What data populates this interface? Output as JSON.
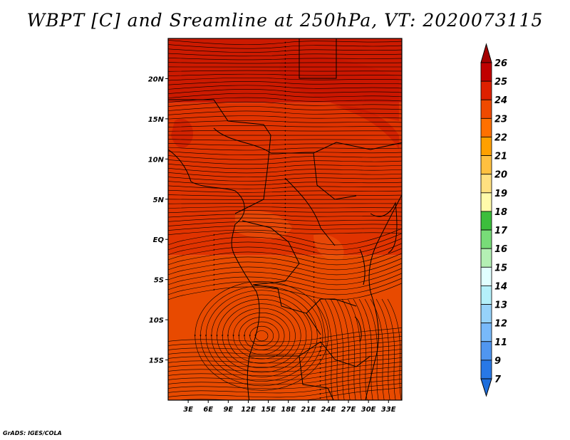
{
  "title": "WBPT [C] and Sreamline at 250hPa, VT: 2020073115",
  "credit": "GrADS: IGES/COLA",
  "map": {
    "lon_range": [
      0,
      35
    ],
    "lat_range": [
      -20,
      25
    ],
    "lat_ticks": [
      {
        "value": 20,
        "label": "20N"
      },
      {
        "value": 15,
        "label": "15N"
      },
      {
        "value": 10,
        "label": "10N"
      },
      {
        "value": 5,
        "label": "5N"
      },
      {
        "value": 0,
        "label": "EQ"
      },
      {
        "value": -5,
        "label": "5S"
      },
      {
        "value": -10,
        "label": "10S"
      },
      {
        "value": -15,
        "label": "15S"
      }
    ],
    "lon_ticks": [
      {
        "value": 3,
        "label": "3E"
      },
      {
        "value": 6,
        "label": "6E"
      },
      {
        "value": 9,
        "label": "9E"
      },
      {
        "value": 12,
        "label": "12E"
      },
      {
        "value": 15,
        "label": "15E"
      },
      {
        "value": 18,
        "label": "18E"
      },
      {
        "value": 21,
        "label": "21E"
      },
      {
        "value": 24,
        "label": "24E"
      },
      {
        "value": 27,
        "label": "27E"
      },
      {
        "value": 30,
        "label": "30E"
      },
      {
        "value": 33,
        "label": "33E"
      }
    ],
    "field_bands": [
      {
        "color": "#cc1a00",
        "lat_from": 25,
        "lat_to": 17
      },
      {
        "color": "#e03300",
        "lat_from": 17,
        "lat_to": -2
      },
      {
        "color": "#e84a00",
        "lat_from": -2,
        "lat_to": -20
      }
    ]
  },
  "colorbar": {
    "levels": [
      {
        "label": "26",
        "color": "#a50000"
      },
      {
        "label": "25",
        "color": "#c00000"
      },
      {
        "label": "24",
        "color": "#de2000"
      },
      {
        "label": "23",
        "color": "#ef4a00"
      },
      {
        "label": "22",
        "color": "#ff7000"
      },
      {
        "label": "21",
        "color": "#ffa000"
      },
      {
        "label": "20",
        "color": "#ffc040"
      },
      {
        "label": "19",
        "color": "#ffe080"
      },
      {
        "label": "18",
        "color": "#fffaaa"
      },
      {
        "label": "17",
        "color": "#3cbe3c"
      },
      {
        "label": "16",
        "color": "#78dc78"
      },
      {
        "label": "15",
        "color": "#b4f0b4"
      },
      {
        "label": "14",
        "color": "#e1ffff"
      },
      {
        "label": "13",
        "color": "#b4f0fa"
      },
      {
        "label": "12",
        "color": "#96d2fa"
      },
      {
        "label": "11",
        "color": "#78b9fa"
      },
      {
        "label": "9",
        "color": "#5096f0"
      },
      {
        "label": "7",
        "color": "#2878e6"
      }
    ],
    "overflow_top_color": "#a50000",
    "overflow_bottom_color": "#1e6edc"
  }
}
